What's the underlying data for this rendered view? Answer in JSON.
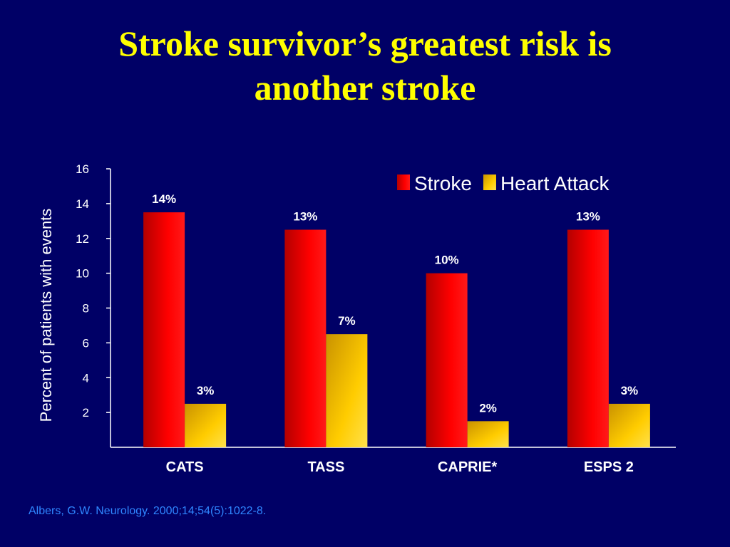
{
  "slide": {
    "title_line1": "Stroke survivor’s greatest risk is",
    "title_line2": "another stroke",
    "citation": "Albers, G.W. Neurology. 2000;14;54(5):1022-8."
  },
  "chart_data": {
    "type": "bar",
    "title": "",
    "categories": [
      "CATS",
      "TASS",
      "CAPRIE*",
      "ESPS 2"
    ],
    "series": [
      {
        "name": "Stroke",
        "values": [
          13.5,
          12.5,
          10,
          12.5
        ],
        "labels": [
          "14%",
          "13%",
          "10%",
          "13%"
        ],
        "color": "#ff0000"
      },
      {
        "name": "Heart Attack",
        "values": [
          2.5,
          6.5,
          1.5,
          2.5
        ],
        "labels": [
          "3%",
          "7%",
          "2%",
          "3%"
        ],
        "color": "#ffcc00"
      }
    ],
    "xlabel": "",
    "ylabel": "Percent of patients with events",
    "ylim": [
      0,
      16
    ],
    "yticks": [
      2,
      4,
      6,
      8,
      10,
      12,
      14,
      16
    ],
    "grid": false,
    "legend": "top-right"
  }
}
